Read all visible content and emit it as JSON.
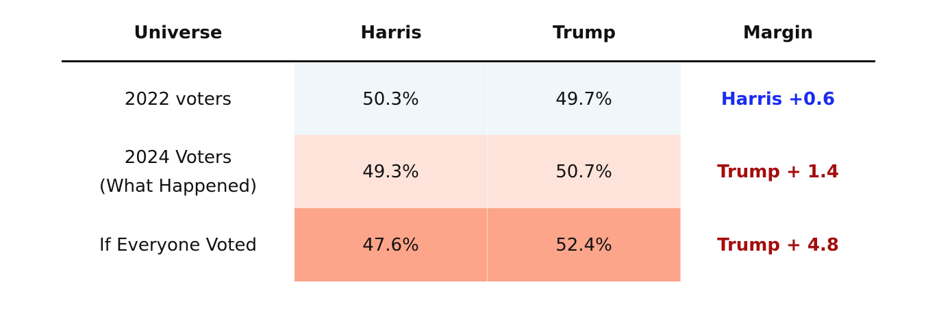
{
  "chart_data": {
    "type": "table",
    "columns": [
      "Universe",
      "Harris",
      "Trump",
      "Margin"
    ],
    "rows": [
      {
        "universe": [
          "2022 voters"
        ],
        "harris": "50.3%",
        "trump": "49.7%",
        "margin": "Harris +0.6",
        "harris_value": 50.3,
        "trump_value": 49.7,
        "fill_color": "#eff7fb",
        "margin_color": "#1a2cf0"
      },
      {
        "universe": [
          "2024 Voters",
          "(What Happened)"
        ],
        "harris": "49.3%",
        "trump": "50.7%",
        "margin": "Trump + 1.4",
        "harris_value": 49.3,
        "trump_value": 50.7,
        "fill_color": "#fde3da",
        "margin_color": "#a40d0d"
      },
      {
        "universe": [
          "If Everyone Voted"
        ],
        "harris": "47.6%",
        "trump": "52.4%",
        "margin": "Trump + 4.8",
        "harris_value": 47.6,
        "trump_value": 52.4,
        "fill_color": "#fca58a",
        "margin_color": "#a40d0d"
      }
    ]
  }
}
